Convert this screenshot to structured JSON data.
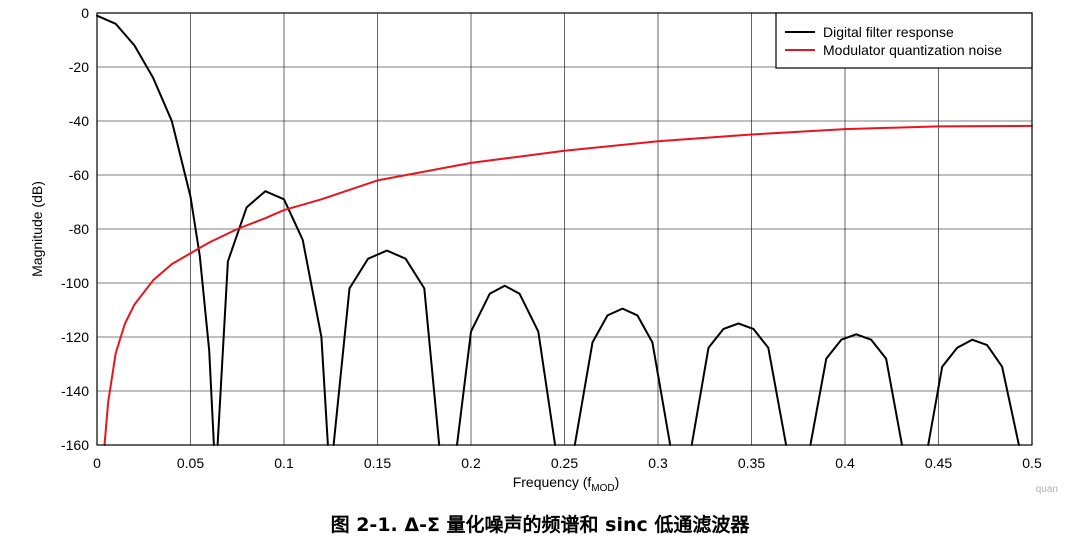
{
  "caption": "图 2-1. Δ-Σ 量化噪声的频谱和 sinc 低通滤波器",
  "watermark": "quan",
  "chart_data": {
    "type": "line",
    "title": "",
    "xlabel": "Frequency (f",
    "xlabel_sub": "MOD",
    "xlabel_end": ")",
    "ylabel": "Magnitude (dB)",
    "xlim": [
      0,
      0.5
    ],
    "ylim": [
      -160,
      0
    ],
    "xticks": [
      0,
      0.05,
      0.1,
      0.15,
      0.2,
      0.25,
      0.3,
      0.35,
      0.4,
      0.45,
      0.5
    ],
    "xtick_labels": [
      "0",
      "0.05",
      "0.1",
      "0.15",
      "0.2",
      "0.25",
      "0.3",
      "0.35",
      "0.4",
      "0.45",
      "0.5"
    ],
    "yticks": [
      0,
      -20,
      -40,
      -60,
      -80,
      -100,
      -120,
      -140,
      -160
    ],
    "ytick_labels": [
      "0",
      "-20",
      "-40",
      "-60",
      "-80",
      "-100",
      "-120",
      "-140",
      "-160"
    ],
    "grid": true,
    "legend_position": "top-right",
    "series": [
      {
        "name": "Digital filter response",
        "color": "#000000",
        "x": [
          0,
          0.01,
          0.02,
          0.03,
          0.04,
          0.05,
          0.055,
          0.06,
          0.0625,
          "gap",
          0.0645,
          0.07,
          0.08,
          0.09,
          0.1,
          0.11,
          0.12,
          0.1235,
          "gap",
          0.1265,
          0.135,
          0.145,
          0.155,
          0.165,
          0.175,
          0.183,
          "gap",
          0.1925,
          0.2,
          0.21,
          0.218,
          0.226,
          0.236,
          0.245,
          "gap",
          0.2555,
          0.265,
          0.273,
          0.281,
          0.289,
          0.297,
          0.3065,
          "gap",
          0.318,
          0.327,
          0.335,
          0.343,
          0.351,
          0.359,
          0.3685,
          "gap",
          0.3815,
          0.39,
          0.398,
          0.406,
          0.414,
          0.422,
          0.4305,
          "gap",
          0.4445,
          0.452,
          0.46,
          0.468,
          0.476,
          0.484,
          0.493
        ],
        "y": [
          -1,
          -4,
          -12,
          -24,
          -40,
          -68,
          -90,
          -125,
          -160,
          "gap",
          -160,
          -92,
          -72,
          -66,
          -69,
          -84,
          -120,
          -160,
          "gap",
          -160,
          -102,
          -91,
          -88,
          -91,
          -102,
          -160,
          "gap",
          -160,
          -118,
          -104,
          -101,
          -104,
          -118,
          -160,
          "gap",
          -160,
          -122,
          -112,
          -109.5,
          -112,
          -122,
          -160,
          "gap",
          -160,
          -124,
          -117,
          -115,
          -117,
          -124,
          -160,
          "gap",
          -160,
          -128,
          -121,
          -119,
          -121,
          -128,
          -160,
          "gap",
          -160,
          -131,
          -124,
          -121,
          -123,
          -131,
          -160
        ]
      },
      {
        "name": "Modulator quantization noise",
        "color": "#e8141e",
        "x": [
          0.004,
          0.006,
          0.01,
          0.015,
          0.02,
          0.03,
          0.04,
          0.05,
          0.06,
          0.075,
          0.09,
          0.1,
          0.12,
          0.15,
          0.2,
          0.25,
          0.3,
          0.35,
          0.4,
          0.45,
          0.5
        ],
        "y": [
          -160,
          -144,
          -126,
          -115,
          -108,
          -99,
          -93,
          -89,
          -85,
          -80,
          -76,
          -73,
          -69,
          -62,
          -55.5,
          -51,
          -47.5,
          -45,
          -43,
          -42,
          -41.8
        ]
      }
    ]
  }
}
